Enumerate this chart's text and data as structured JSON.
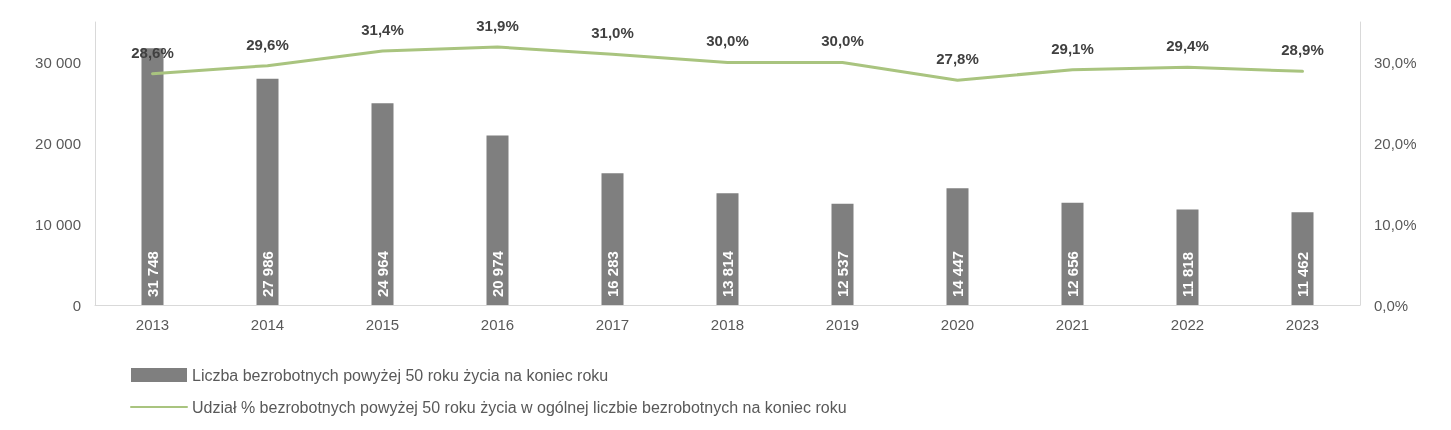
{
  "chart_data": {
    "type": "bar",
    "categories": [
      "2013",
      "2014",
      "2015",
      "2016",
      "2017",
      "2018",
      "2019",
      "2020",
      "2021",
      "2022",
      "2023"
    ],
    "series": [
      {
        "name": "Liczba bezrobotnych powyżej 50 roku życia na koniec roku",
        "color": "#7f7f7f",
        "values": [
          31748,
          27986,
          24964,
          20974,
          16283,
          13814,
          12537,
          14447,
          12656,
          11818,
          11462
        ],
        "value_labels": [
          "31 748",
          "27 986",
          "24 964",
          "20 974",
          "16 283",
          "13 814",
          "12 537",
          "14 447",
          "12 656",
          "11 818",
          "11 462"
        ]
      },
      {
        "name": "Udział % bezrobotnych powyżej 50 roku życia w ogólnej liczbie bezrobotnych na koniec roku",
        "type": "line",
        "axis": "y2",
        "color": "#a9c47f",
        "values": [
          28.6,
          29.6,
          31.4,
          31.9,
          31.0,
          30.0,
          30.0,
          27.8,
          29.1,
          29.4,
          28.9
        ],
        "value_labels": [
          "28,6%",
          "29,6%",
          "31,4%",
          "31,9%",
          "31,0%",
          "30,0%",
          "30,0%",
          "27,8%",
          "29,1%",
          "29,4%",
          "28,9%"
        ]
      }
    ],
    "ylim": [
      0,
      35000
    ],
    "yticks": [
      0,
      {
        "value": 10000,
        "label": "10 000"
      },
      {
        "value": 20000,
        "label": "20 000"
      },
      {
        "value": 30000,
        "label": "30 000"
      }
    ],
    "y2lim": [
      0,
      35
    ],
    "y2ticks": [
      {
        "value": 0,
        "label": "0,0%"
      },
      {
        "value": 10,
        "label": "10,0%"
      },
      {
        "value": 20,
        "label": "20,0%"
      },
      {
        "value": 30,
        "label": "30,0%"
      }
    ],
    "legend": "bottom",
    "marker": "none",
    "grid": false
  }
}
